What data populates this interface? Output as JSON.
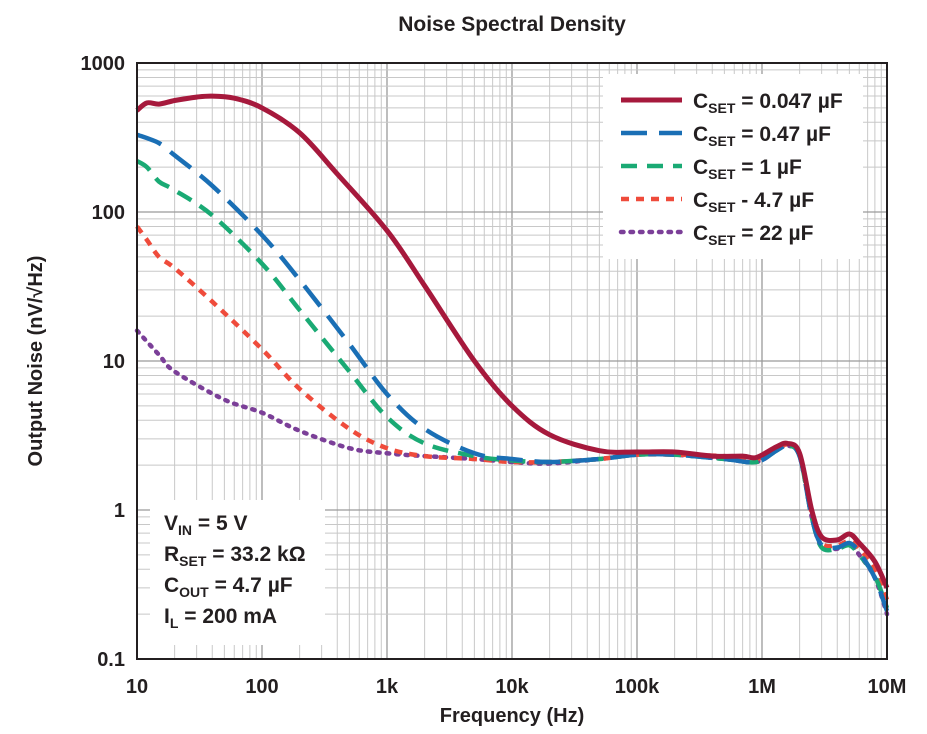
{
  "chart_data": {
    "type": "line",
    "title": "Noise Spectral Density",
    "xlabel": "Frequency (Hz)",
    "ylabel": "Output Noise (nV/√Hz)",
    "xscale": "log",
    "yscale": "log",
    "xlim": [
      10,
      10000000
    ],
    "ylim": [
      0.1,
      1000
    ],
    "x_ticks": [
      "10",
      "100",
      "1k",
      "10k",
      "100k",
      "1M",
      "10M"
    ],
    "y_ticks": [
      "0.1",
      "1",
      "10",
      "100",
      "1000"
    ],
    "grid": true,
    "legend_position": "top-right",
    "series": [
      {
        "name": "CSET = 0.047 µF",
        "label_main": "C",
        "label_sub": "SET",
        "label_rest": " = 0.047 µF",
        "color": "#a6193c",
        "style": "solid",
        "points": [
          [
            10,
            480
          ],
          [
            12,
            540
          ],
          [
            15,
            530
          ],
          [
            20,
            560
          ],
          [
            30,
            590
          ],
          [
            40,
            600
          ],
          [
            60,
            580
          ],
          [
            100,
            500
          ],
          [
            200,
            340
          ],
          [
            400,
            180
          ],
          [
            1000,
            75
          ],
          [
            2000,
            32
          ],
          [
            5000,
            10
          ],
          [
            10000,
            5
          ],
          [
            20000,
            3.2
          ],
          [
            50000,
            2.5
          ],
          [
            100000,
            2.45
          ],
          [
            200000,
            2.45
          ],
          [
            400000,
            2.3
          ],
          [
            700000,
            2.3
          ],
          [
            900000,
            2.25
          ],
          [
            1300000,
            2.65
          ],
          [
            1600000,
            2.8
          ],
          [
            2000000,
            2.4
          ],
          [
            2500000,
            1.0
          ],
          [
            3000000,
            0.66
          ],
          [
            4000000,
            0.63
          ],
          [
            5000000,
            0.69
          ],
          [
            6000000,
            0.6
          ],
          [
            8000000,
            0.45
          ],
          [
            10000000,
            0.3
          ]
        ]
      },
      {
        "name": "CSET = 0.47 µF",
        "label_main": "C",
        "label_sub": "SET",
        "label_rest": " = 0.47 µF",
        "color": "#1a6fb5",
        "style": "longdash",
        "points": [
          [
            10,
            330
          ],
          [
            15,
            290
          ],
          [
            20,
            240
          ],
          [
            40,
            150
          ],
          [
            100,
            70
          ],
          [
            200,
            35
          ],
          [
            500,
            13
          ],
          [
            1000,
            6
          ],
          [
            2000,
            3.5
          ],
          [
            5000,
            2.4
          ],
          [
            10000,
            2.2
          ],
          [
            20000,
            2.1
          ],
          [
            50000,
            2.2
          ],
          [
            100000,
            2.35
          ],
          [
            200000,
            2.35
          ],
          [
            500000,
            2.2
          ],
          [
            900000,
            2.1
          ],
          [
            1300000,
            2.5
          ],
          [
            1600000,
            2.7
          ],
          [
            2000000,
            2.3
          ],
          [
            2500000,
            0.9
          ],
          [
            3000000,
            0.58
          ],
          [
            4000000,
            0.56
          ],
          [
            5000000,
            0.6
          ],
          [
            6000000,
            0.52
          ],
          [
            8000000,
            0.35
          ],
          [
            10000000,
            0.21
          ]
        ]
      },
      {
        "name": "CSET = 1 µF",
        "label_main": "C",
        "label_sub": "SET",
        "label_rest": " = 1 µF",
        "color": "#1aaa74",
        "style": "dash",
        "points": [
          [
            10,
            220
          ],
          [
            12,
            200
          ],
          [
            15,
            160
          ],
          [
            20,
            140
          ],
          [
            40,
            95
          ],
          [
            100,
            45
          ],
          [
            200,
            22
          ],
          [
            500,
            8.5
          ],
          [
            1000,
            4.2
          ],
          [
            2000,
            2.8
          ],
          [
            5000,
            2.3
          ],
          [
            10000,
            2.15
          ],
          [
            20000,
            2.1
          ],
          [
            50000,
            2.2
          ],
          [
            100000,
            2.35
          ],
          [
            200000,
            2.35
          ],
          [
            500000,
            2.2
          ],
          [
            900000,
            2.1
          ],
          [
            1300000,
            2.5
          ],
          [
            1600000,
            2.7
          ],
          [
            2000000,
            2.3
          ],
          [
            2500000,
            0.9
          ],
          [
            3000000,
            0.56
          ],
          [
            4000000,
            0.55
          ],
          [
            5000000,
            0.58
          ],
          [
            6000000,
            0.5
          ],
          [
            8000000,
            0.36
          ],
          [
            10000000,
            0.22
          ]
        ]
      },
      {
        "name": "CSET - 4.7 µF",
        "label_main": "C",
        "label_sub": "SET",
        "label_rest": " - 4.7 µF",
        "color": "#ef4b3b",
        "style": "shortdash",
        "points": [
          [
            10,
            80
          ],
          [
            12,
            65
          ],
          [
            15,
            50
          ],
          [
            20,
            42
          ],
          [
            40,
            25
          ],
          [
            100,
            12
          ],
          [
            200,
            6.5
          ],
          [
            500,
            3.5
          ],
          [
            1000,
            2.6
          ],
          [
            2000,
            2.3
          ],
          [
            5000,
            2.2
          ],
          [
            10000,
            2.1
          ],
          [
            20000,
            2.1
          ],
          [
            50000,
            2.2
          ],
          [
            100000,
            2.35
          ],
          [
            200000,
            2.35
          ],
          [
            500000,
            2.3
          ],
          [
            900000,
            2.2
          ],
          [
            1300000,
            2.55
          ],
          [
            1600000,
            2.75
          ],
          [
            2000000,
            2.35
          ],
          [
            2500000,
            0.95
          ],
          [
            3000000,
            0.6
          ],
          [
            4000000,
            0.58
          ],
          [
            5000000,
            0.62
          ],
          [
            6000000,
            0.55
          ],
          [
            8000000,
            0.4
          ],
          [
            10000000,
            0.25
          ]
        ]
      },
      {
        "name": "CSET = 22 µF",
        "label_main": "C",
        "label_sub": "SET",
        "label_rest": " = 22 µF",
        "color": "#7b3f98",
        "style": "dot",
        "points": [
          [
            10,
            16
          ],
          [
            15,
            11
          ],
          [
            20,
            8.5
          ],
          [
            50,
            5.5
          ],
          [
            100,
            4.5
          ],
          [
            200,
            3.4
          ],
          [
            500,
            2.6
          ],
          [
            1000,
            2.4
          ],
          [
            2000,
            2.3
          ],
          [
            5000,
            2.2
          ],
          [
            10000,
            2.1
          ],
          [
            20000,
            2.05
          ],
          [
            50000,
            2.2
          ],
          [
            100000,
            2.35
          ],
          [
            200000,
            2.35
          ],
          [
            500000,
            2.2
          ],
          [
            900000,
            2.1
          ],
          [
            1300000,
            2.5
          ],
          [
            1600000,
            2.7
          ],
          [
            2000000,
            2.3
          ],
          [
            2500000,
            0.9
          ],
          [
            3000000,
            0.57
          ],
          [
            4000000,
            0.55
          ],
          [
            5000000,
            0.59
          ],
          [
            6000000,
            0.5
          ],
          [
            8000000,
            0.35
          ],
          [
            10000000,
            0.2
          ]
        ]
      }
    ],
    "annotations": [
      {
        "main": "V",
        "sub": "IN",
        "rest": " = 5 V"
      },
      {
        "main": "R",
        "sub": "SET",
        "rest": " = 33.2 kΩ"
      },
      {
        "main": "C",
        "sub": "OUT",
        "rest": " = 4.7 µF"
      },
      {
        "main": "I",
        "sub": "L",
        "rest": " = 200 mA"
      }
    ]
  }
}
